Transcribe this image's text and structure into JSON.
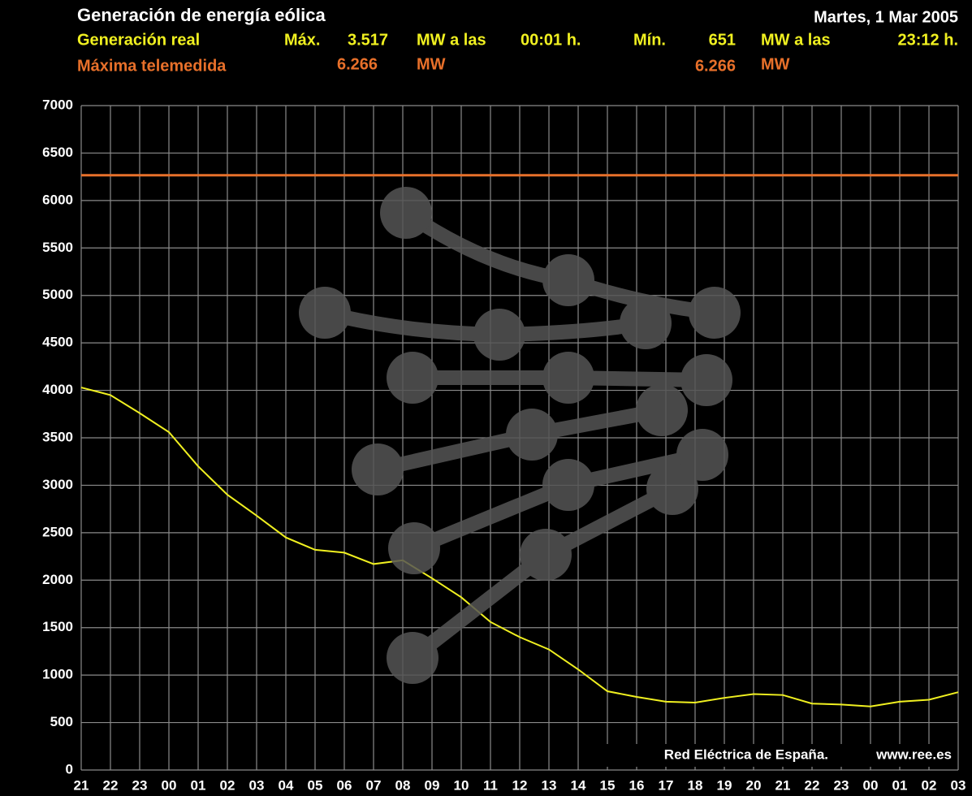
{
  "chart_data": {
    "type": "line",
    "title": "Generación de energía eólica",
    "date": "Martes, 1 Mar 2005",
    "stats": {
      "max_text": "Máx.",
      "max": {
        "value": 3517,
        "label": "3.517"
      },
      "max_unit": "MW a las",
      "max_time": "00:01 h.",
      "min_text": "Mín.",
      "min": {
        "value": 651,
        "label": "651"
      },
      "min_unit": "MW a las",
      "min_time": "23:12 h."
    },
    "reference": {
      "name": "Máxima telemedida",
      "color": "#e8702a",
      "value": 6266,
      "label": "6.266",
      "unit": "MW",
      "label_right": "6.266",
      "unit_right": "MW"
    },
    "categories": [
      "21",
      "22",
      "23",
      "00",
      "01",
      "02",
      "03",
      "04",
      "05",
      "06",
      "07",
      "08",
      "09",
      "10",
      "11",
      "12",
      "13",
      "14",
      "15",
      "16",
      "17",
      "18",
      "19",
      "20",
      "21",
      "22",
      "23",
      "00",
      "01",
      "02",
      "03"
    ],
    "series": [
      {
        "name": "Generación real",
        "color": "#f0f020",
        "values": [
          4030,
          3950,
          3760,
          3560,
          3200,
          2900,
          2680,
          2450,
          2320,
          2290,
          2170,
          2210,
          2020,
          1820,
          1560,
          1400,
          1270,
          1060,
          830,
          770,
          720,
          710,
          760,
          800,
          790,
          700,
          690,
          670,
          720,
          740,
          820
        ]
      }
    ],
    "ylim": [
      0,
      7000
    ],
    "yticks": [
      0,
      500,
      1000,
      1500,
      2000,
      2500,
      3000,
      3500,
      4000,
      4500,
      5000,
      5500,
      6000,
      6500,
      7000
    ],
    "grid": true,
    "source": "Red Eléctrica de España.",
    "url": "www.ree.es"
  }
}
